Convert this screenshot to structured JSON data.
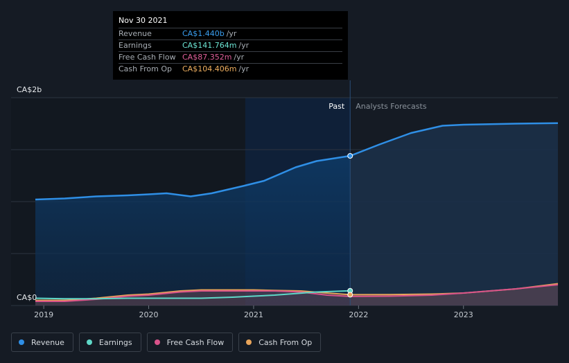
{
  "tooltip": {
    "date": "Nov 30 2021",
    "rows": [
      {
        "label": "Revenue",
        "value": "CA$1.440b",
        "unit": "/yr",
        "color": "#3a9ff0"
      },
      {
        "label": "Earnings",
        "value": "CA$141.764m",
        "unit": "/yr",
        "color": "#6ee7d6"
      },
      {
        "label": "Free Cash Flow",
        "value": "CA$87.352m",
        "unit": "/yr",
        "color": "#e0609a"
      },
      {
        "label": "Cash From Op",
        "value": "CA$104.406m",
        "unit": "/yr",
        "color": "#f0b060"
      }
    ]
  },
  "past_label": "Past",
  "forecast_label": "Analysts Forecasts",
  "legend": [
    {
      "label": "Revenue",
      "color": "#2f8fe6"
    },
    {
      "label": "Earnings",
      "color": "#5fd8c8"
    },
    {
      "label": "Free Cash Flow",
      "color": "#d9538a"
    },
    {
      "label": "Cash From Op",
      "color": "#e8a45a"
    }
  ],
  "chart_data": {
    "type": "line",
    "y_axis_label_top": "CA$2b",
    "y_axis_label_bottom": "CA$0",
    "ylim": [
      0,
      2.0
    ],
    "xlim": [
      2018.9,
      2023.9
    ],
    "x_ticks": [
      2019,
      2020,
      2021,
      2022,
      2023
    ],
    "x_tick_labels": [
      "2019",
      "2020",
      "2021",
      "2022",
      "2023"
    ],
    "divider_x": 2021.92,
    "shade_start_x": 2020.92,
    "grid": true,
    "series": [
      {
        "name": "Revenue",
        "color": "#2f8fe6",
        "x": [
          2018.92,
          2019.2,
          2019.5,
          2019.8,
          2020.0,
          2020.17,
          2020.4,
          2020.6,
          2020.9,
          2021.1,
          2021.4,
          2021.6,
          2021.92,
          2022.2,
          2022.5,
          2022.8,
          2023.0,
          2023.5,
          2023.9
        ],
        "y": [
          1.02,
          1.03,
          1.05,
          1.06,
          1.07,
          1.08,
          1.05,
          1.08,
          1.15,
          1.2,
          1.33,
          1.39,
          1.44,
          1.55,
          1.66,
          1.73,
          1.74,
          1.75,
          1.755
        ]
      },
      {
        "name": "Earnings",
        "color": "#5fd8c8",
        "x": [
          2018.92,
          2019.2,
          2019.5,
          2019.8,
          2020.0,
          2020.3,
          2020.5,
          2020.8,
          2021.0,
          2021.2,
          2021.4,
          2021.6,
          2021.92
        ],
        "y": [
          0.07,
          0.065,
          0.065,
          0.07,
          0.07,
          0.07,
          0.07,
          0.08,
          0.09,
          0.1,
          0.115,
          0.13,
          0.142
        ]
      },
      {
        "name": "Free Cash Flow",
        "color": "#d9538a",
        "x": [
          2018.92,
          2019.2,
          2019.5,
          2019.8,
          2020.0,
          2020.3,
          2020.5,
          2020.8,
          2021.0,
          2021.2,
          2021.45,
          2021.7,
          2021.92,
          2022.3,
          2022.7,
          2023.0,
          2023.5,
          2023.9
        ],
        "y": [
          0.04,
          0.04,
          0.06,
          0.09,
          0.1,
          0.13,
          0.14,
          0.14,
          0.14,
          0.14,
          0.13,
          0.1,
          0.087,
          0.09,
          0.1,
          0.12,
          0.16,
          0.2
        ]
      },
      {
        "name": "Cash From Op",
        "color": "#e8a45a",
        "x": [
          2018.92,
          2019.2,
          2019.5,
          2019.8,
          2020.0,
          2020.3,
          2020.5,
          2020.8,
          2021.0,
          2021.2,
          2021.45,
          2021.7,
          2021.92,
          2022.3,
          2022.7,
          2023.0,
          2023.5,
          2023.9
        ],
        "y": [
          0.05,
          0.05,
          0.07,
          0.1,
          0.11,
          0.14,
          0.15,
          0.15,
          0.15,
          0.145,
          0.14,
          0.12,
          0.104,
          0.105,
          0.11,
          0.12,
          0.16,
          0.21
        ]
      }
    ]
  }
}
